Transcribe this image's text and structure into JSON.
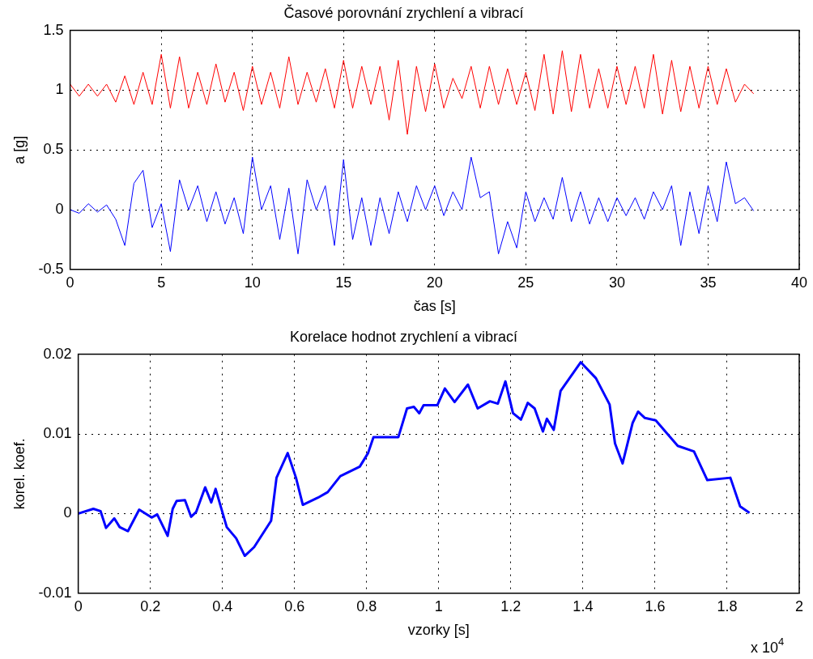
{
  "chart_data": [
    {
      "type": "line",
      "title": "Časové porovnání zrychlení a vibrací",
      "xlabel": "čas [s]",
      "ylabel": "a [g]",
      "x": [
        0,
        0.5,
        1,
        1.5,
        2,
        2.5,
        3,
        3.5,
        4,
        4.5,
        5,
        5.5,
        6,
        6.5,
        7,
        7.5,
        8,
        8.5,
        9,
        9.5,
        10,
        10.5,
        11,
        11.5,
        12,
        12.5,
        13,
        13.5,
        14,
        14.5,
        15,
        15.5,
        16,
        16.5,
        17,
        17.5,
        18,
        18.5,
        19,
        19.5,
        20,
        20.5,
        21,
        21.5,
        22,
        22.5,
        23,
        23.5,
        24,
        24.5,
        25,
        25.5,
        26,
        26.5,
        27,
        27.5,
        28,
        28.5,
        29,
        29.5,
        30,
        30.5,
        31,
        31.5,
        32,
        32.5,
        33,
        33.5,
        34,
        34.5,
        35,
        35.5,
        36,
        36.5,
        37,
        37.5
      ],
      "series": [
        {
          "color": "#ff0000",
          "values": [
            1.05,
            0.95,
            1.05,
            0.95,
            1.05,
            0.9,
            1.12,
            0.88,
            1.15,
            0.88,
            1.3,
            0.85,
            1.28,
            0.85,
            1.15,
            0.88,
            1.22,
            0.9,
            1.15,
            0.83,
            1.2,
            0.88,
            1.15,
            0.85,
            1.28,
            0.88,
            1.15,
            0.9,
            1.18,
            0.85,
            1.25,
            0.85,
            1.2,
            0.88,
            1.2,
            0.75,
            1.25,
            0.63,
            1.2,
            0.82,
            1.22,
            0.85,
            1.1,
            0.93,
            1.2,
            0.85,
            1.2,
            0.88,
            1.18,
            0.88,
            1.15,
            0.83,
            1.3,
            0.8,
            1.33,
            0.82,
            1.3,
            0.85,
            1.18,
            0.85,
            1.2,
            0.88,
            1.2,
            0.85,
            1.3,
            0.8,
            1.25,
            0.82,
            1.2,
            0.85,
            1.2,
            0.88,
            1.18,
            0.9,
            1.05,
            0.97
          ]
        },
        {
          "color": "#0000ff",
          "values": [
            0.0,
            -0.03,
            0.05,
            -0.02,
            0.04,
            -0.08,
            -0.3,
            0.22,
            0.33,
            -0.15,
            0.05,
            -0.35,
            0.25,
            0.0,
            0.2,
            -0.1,
            0.15,
            -0.12,
            0.1,
            -0.2,
            0.44,
            0.0,
            0.2,
            -0.25,
            0.18,
            -0.37,
            0.25,
            0.0,
            0.2,
            -0.3,
            0.42,
            -0.25,
            0.1,
            -0.3,
            0.1,
            -0.2,
            0.15,
            -0.1,
            0.2,
            0.0,
            0.2,
            -0.05,
            0.15,
            0.0,
            0.44,
            0.1,
            0.15,
            -0.37,
            -0.1,
            -0.32,
            0.15,
            -0.1,
            0.1,
            -0.08,
            0.27,
            -0.1,
            0.15,
            -0.12,
            0.1,
            -0.1,
            0.1,
            -0.05,
            0.1,
            -0.08,
            0.15,
            0.0,
            0.2,
            -0.3,
            0.15,
            -0.2,
            0.2,
            -0.1,
            0.4,
            0.05,
            0.1,
            -0.01
          ]
        }
      ],
      "xlim": [
        0,
        40
      ],
      "xticks": [
        0,
        5,
        10,
        15,
        20,
        25,
        30,
        35,
        40
      ],
      "ylim": [
        -0.5,
        1.5
      ],
      "yticks": [
        -0.5,
        0,
        0.5,
        1,
        1.5
      ],
      "grid": true,
      "legend": false
    },
    {
      "type": "line",
      "title": "Korelace hodnot zrychlení a vibrací",
      "xlabel": "vzorky [s]",
      "ylabel": "korel. koef.",
      "annotations": [
        "x 10$^{4}$"
      ],
      "x": [
        0,
        0.042,
        0.062,
        0.077,
        0.1,
        0.115,
        0.138,
        0.169,
        0.204,
        0.219,
        0.248,
        0.262,
        0.273,
        0.296,
        0.313,
        0.327,
        0.352,
        0.369,
        0.381,
        0.412,
        0.438,
        0.462,
        0.488,
        0.535,
        0.55,
        0.581,
        0.604,
        0.623,
        0.665,
        0.692,
        0.727,
        0.781,
        0.804,
        0.819,
        0.888,
        0.912,
        0.931,
        0.946,
        0.958,
        0.996,
        1.017,
        1.044,
        1.081,
        1.108,
        1.142,
        1.164,
        1.185,
        1.206,
        1.228,
        1.247,
        1.266,
        1.289,
        1.3,
        1.319,
        1.338,
        1.394,
        1.436,
        1.474,
        1.489,
        1.51,
        1.538,
        1.553,
        1.572,
        1.602,
        1.663,
        1.708,
        1.745,
        1.809,
        1.836,
        1.862
      ],
      "series": [
        {
          "color": "#0000ff",
          "values": [
            0,
            0.0006,
            0.0003,
            -0.0018,
            -0.0006,
            -0.0017,
            -0.0022,
            0.0005,
            -0.0005,
            -0.0001,
            -0.0028,
            0.0006,
            0.0016,
            0.0017,
            -0.0004,
            0.0002,
            0.0033,
            0.0014,
            0.0031,
            -0.0017,
            -0.0031,
            -0.0053,
            -0.0042,
            -0.0009,
            0.0045,
            0.0076,
            0.0045,
            0.0011,
            0.002,
            0.0027,
            0.0047,
            0.0059,
            0.0076,
            0.0096,
            0.0096,
            0.0132,
            0.0134,
            0.0126,
            0.0136,
            0.0136,
            0.0157,
            0.014,
            0.0162,
            0.0132,
            0.0141,
            0.0138,
            0.0166,
            0.0126,
            0.0118,
            0.0139,
            0.0132,
            0.0103,
            0.0119,
            0.0105,
            0.0154,
            0.019,
            0.017,
            0.0137,
            0.0088,
            0.0063,
            0.0114,
            0.0128,
            0.012,
            0.0117,
            0.0085,
            0.0078,
            0.0042,
            0.0045,
            0.0009,
            0.0001
          ]
        }
      ],
      "xlim": [
        0,
        2
      ],
      "xticks": [
        0,
        0.2,
        0.4,
        0.6,
        0.8,
        1,
        1.2,
        1.4,
        1.6,
        1.8,
        2
      ],
      "ylim": [
        -0.01,
        0.02
      ],
      "yticks": [
        -0.01,
        0,
        0.01,
        0.02
      ],
      "grid": true,
      "legend": false
    }
  ]
}
